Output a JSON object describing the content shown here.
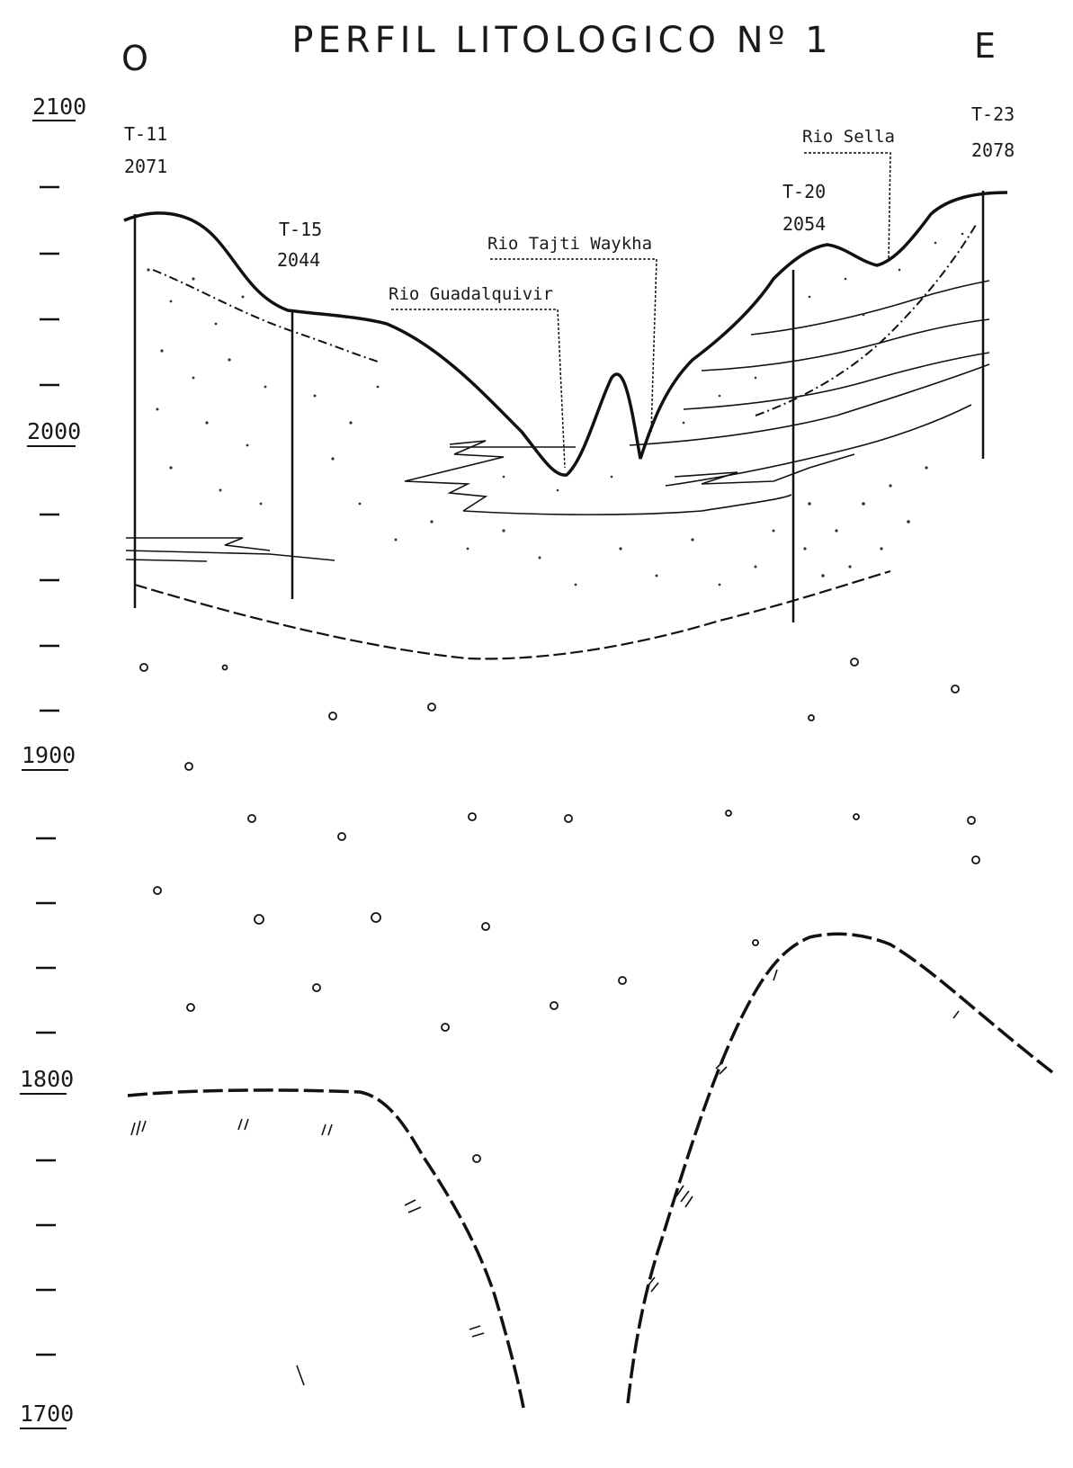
{
  "title": "PERFIL LITOLOGICO Nº 1",
  "orientation": {
    "west": "O",
    "east": "E"
  },
  "elevation_labels": [
    "2100",
    "2000",
    "1900",
    "1800",
    "1700"
  ],
  "wells": [
    {
      "id": "T-11",
      "elevation": "2071"
    },
    {
      "id": "T-15",
      "elevation": "2044"
    },
    {
      "id": "T-20",
      "elevation": "2054"
    },
    {
      "id": "T-23",
      "elevation": "2078"
    }
  ],
  "rivers": [
    {
      "name": "Rio Guadalquivir"
    },
    {
      "name": "Rio Tajti Waykha"
    },
    {
      "name": "Rio Sella"
    }
  ],
  "colors": {
    "ink": "#111111",
    "background": "#ffffff"
  }
}
